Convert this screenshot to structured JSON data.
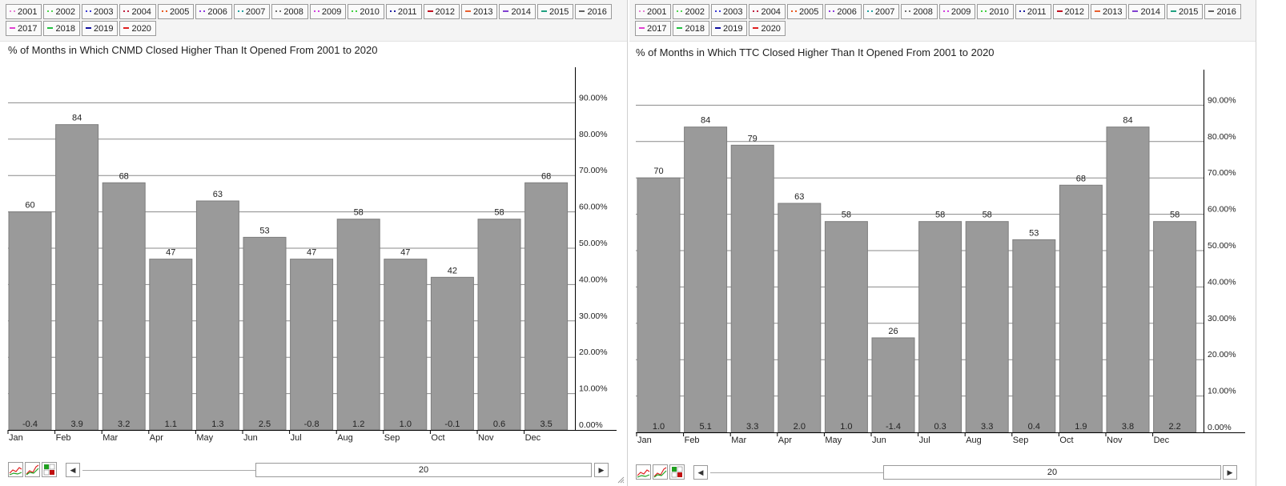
{
  "legend_years": [
    "2001",
    "2002",
    "2003",
    "2004",
    "2005",
    "2006",
    "2007",
    "2008",
    "2009",
    "2010",
    "2011",
    "2012",
    "2013",
    "2014",
    "2015",
    "2016",
    "2017",
    "2018",
    "2019",
    "2020"
  ],
  "legend_colors": [
    "#e87fd6",
    "#4fd64f",
    "#3a3ad6",
    "#c02040",
    "#e85a20",
    "#8e3ae0",
    "#20a0a0",
    "#707070",
    "#d040e0",
    "#40d040",
    "#2020a0",
    "#c01020",
    "#e86030",
    "#8040d0",
    "#20a080",
    "#606060",
    "#e040d0",
    "#20c040",
    "#1010a0",
    "#e02020"
  ],
  "legend_styles": [
    "dot",
    "dot",
    "dot",
    "dot",
    "dot",
    "dot",
    "dot",
    "dot",
    "dot",
    "dot",
    "dot",
    "solid",
    "solid",
    "solid",
    "solid",
    "solid",
    "solid",
    "solid",
    "solid",
    "solid"
  ],
  "colors": {
    "bar": "#9a9a9a",
    "bar_stroke": "#7e7e7e",
    "grid": "#8a8a8a",
    "axis": "#000000",
    "text": "#222222"
  },
  "chart_data": [
    {
      "type": "bar",
      "title": "% of Months in Which CNMD Closed Higher Than It Opened From 2001 to 2020",
      "categories": [
        "Jan",
        "Feb",
        "Mar",
        "Apr",
        "May",
        "Jun",
        "Jul",
        "Aug",
        "Sep",
        "Oct",
        "Nov",
        "Dec"
      ],
      "values": [
        60,
        84,
        68,
        47,
        63,
        53,
        47,
        58,
        47,
        42,
        58,
        68
      ],
      "value_labels": [
        "60",
        "84",
        "68",
        "47",
        "63",
        "53",
        "47",
        "58",
        "47",
        "42",
        "58",
        "68"
      ],
      "bottom_labels": [
        "-0.4",
        "3.9",
        "3.2",
        "1.1",
        "1.3",
        "2.5",
        "-0.8",
        "1.2",
        "1.0",
        "-0.1",
        "0.6",
        "3.5"
      ],
      "ylim": [
        0,
        100
      ],
      "yticks": [
        0,
        10,
        20,
        30,
        40,
        50,
        60,
        70,
        80,
        90
      ],
      "ytick_labels": [
        "0.00%",
        "10.00%",
        "20.00%",
        "30.00%",
        "40.00%",
        "50.00%",
        "60.00%",
        "70.00%",
        "80.00%",
        "90.00%"
      ],
      "grid": true,
      "slider_value": "20"
    },
    {
      "type": "bar",
      "title": "% of Months in Which TTC Closed Higher Than It Opened From 2001 to 2020",
      "categories": [
        "Jan",
        "Feb",
        "Mar",
        "Apr",
        "May",
        "Jun",
        "Jul",
        "Aug",
        "Sep",
        "Oct",
        "Nov",
        "Dec"
      ],
      "values": [
        70,
        84,
        79,
        63,
        58,
        26,
        58,
        58,
        53,
        68,
        84,
        58
      ],
      "value_labels": [
        "70",
        "84",
        "79",
        "63",
        "58",
        "26",
        "58",
        "58",
        "53",
        "68",
        "84",
        "58"
      ],
      "bottom_labels": [
        "1.0",
        "5.1",
        "3.3",
        "2.0",
        "1.0",
        "-1.4",
        "0.3",
        "3.3",
        "0.4",
        "1.9",
        "3.8",
        "2.2"
      ],
      "ylim": [
        0,
        100
      ],
      "yticks": [
        0,
        10,
        20,
        30,
        40,
        50,
        60,
        70,
        80,
        90
      ],
      "ytick_labels": [
        "0.00%",
        "10.00%",
        "20.00%",
        "30.00%",
        "40.00%",
        "50.00%",
        "60.00%",
        "70.00%",
        "80.00%",
        "90.00%"
      ],
      "grid": true,
      "slider_value": "20"
    }
  ]
}
